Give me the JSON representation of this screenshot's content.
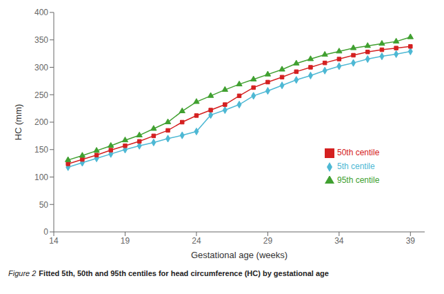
{
  "chart_data": {
    "type": "line",
    "xlabel": "Gestational age (weeks)",
    "ylabel": "HC (mm)",
    "caption": [
      {
        "text": "Figure 2",
        "style": "italic"
      },
      {
        "text": "Fitted 5th, 50th and 95th centiles for head circumference (HC) by gestational age",
        "style": "bold"
      }
    ],
    "x": [
      15,
      16,
      17,
      18,
      19,
      20,
      21,
      22,
      23,
      24,
      25,
      26,
      27,
      28,
      29,
      30,
      31,
      32,
      33,
      34,
      35,
      36,
      37,
      38,
      39
    ],
    "series": [
      {
        "name": "5th centile",
        "color": "#4db8d4",
        "marker": "diamond",
        "values": [
          118,
          126,
          134,
          142,
          150,
          157,
          163,
          170,
          176,
          183,
          213,
          222,
          232,
          248,
          257,
          267,
          277,
          285,
          294,
          302,
          308,
          315,
          320,
          324,
          329
        ]
      },
      {
        "name": "50th centile",
        "color": "#d42020",
        "marker": "square",
        "values": [
          124,
          132,
          140,
          149,
          157,
          165,
          175,
          185,
          200,
          212,
          222,
          232,
          248,
          263,
          273,
          282,
          292,
          300,
          308,
          315,
          322,
          328,
          332,
          335,
          338
        ]
      },
      {
        "name": "95th centile",
        "color": "#40a030",
        "marker": "triangle",
        "values": [
          131,
          139,
          148,
          157,
          167,
          176,
          188,
          200,
          220,
          237,
          248,
          259,
          269,
          278,
          287,
          296,
          307,
          315,
          323,
          329,
          335,
          339,
          343,
          347,
          355
        ]
      }
    ],
    "xlim": [
      14,
      40
    ],
    "ylim": [
      0,
      400
    ],
    "xticks": [
      14,
      19,
      24,
      29,
      34,
      39
    ],
    "yticks": [
      0,
      50,
      100,
      150,
      200,
      250,
      300,
      350,
      400
    ],
    "grid": false,
    "legend": "lower right"
  }
}
